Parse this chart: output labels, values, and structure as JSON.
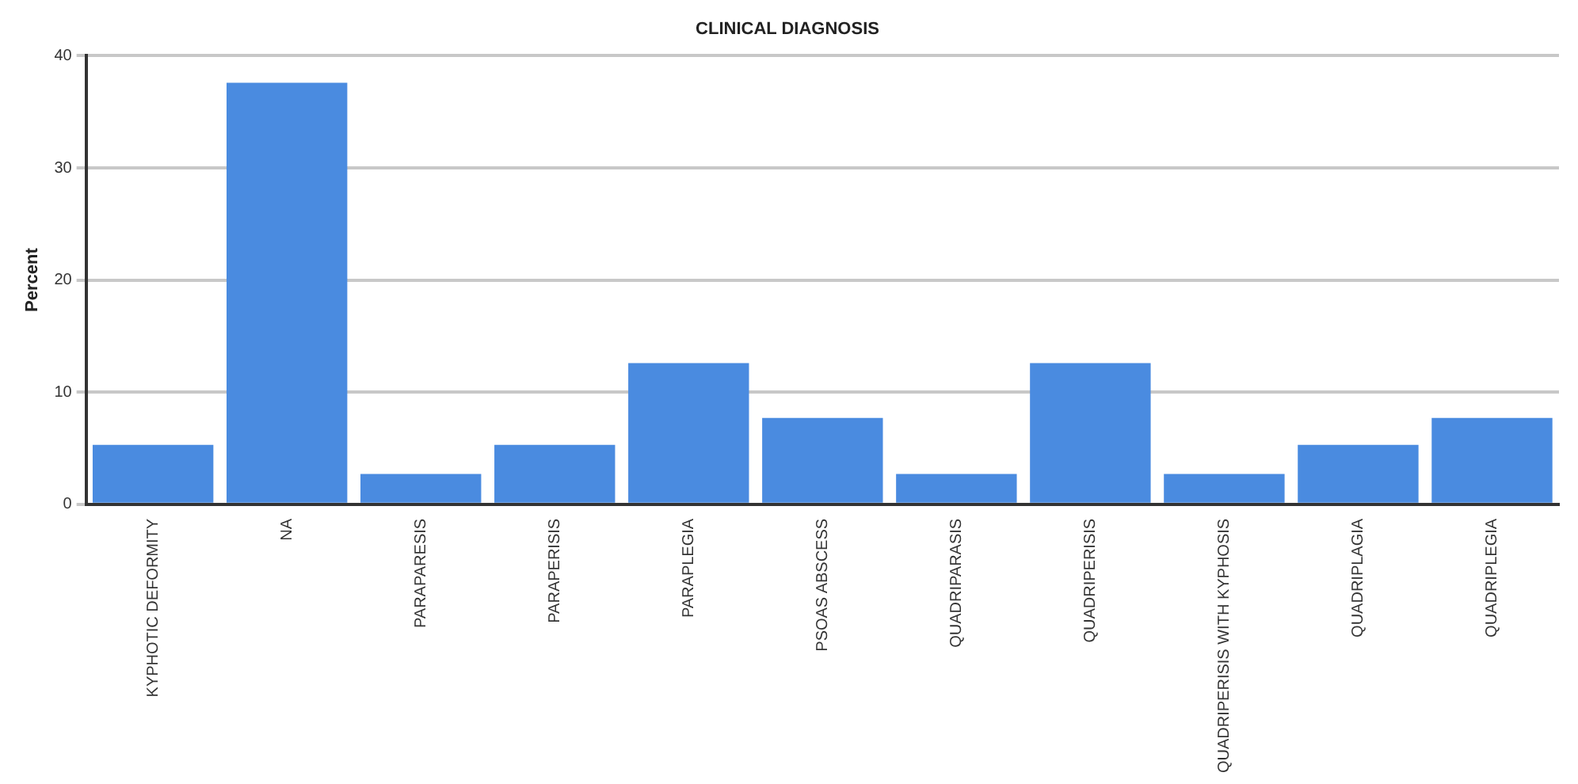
{
  "chart_data": {
    "type": "bar",
    "title": "CLINICAL DIAGNOSIS",
    "ylabel": "Percent",
    "categories": [
      "KYPHOTIC DEFORMITY",
      "NA",
      "PARAPARESIS",
      "PARAPERISIS",
      "PARAPLEGIA",
      "PSOAS ABSCESS",
      "QUADRIPARASIS",
      "QUADRIPERISIS",
      "QUADRIPERISIS WITH KYPHOSIS",
      "QUADRIPLAGIA",
      "QUADRIPLEGIA"
    ],
    "values": [
      5.3,
      37.6,
      2.7,
      5.3,
      12.6,
      7.7,
      2.7,
      12.6,
      2.7,
      5.3,
      7.7
    ],
    "color": "#4a8be0",
    "ylim": [
      0,
      40
    ],
    "yticks": [
      0,
      10,
      20,
      30,
      40
    ],
    "grid": "y",
    "legend": false
  }
}
